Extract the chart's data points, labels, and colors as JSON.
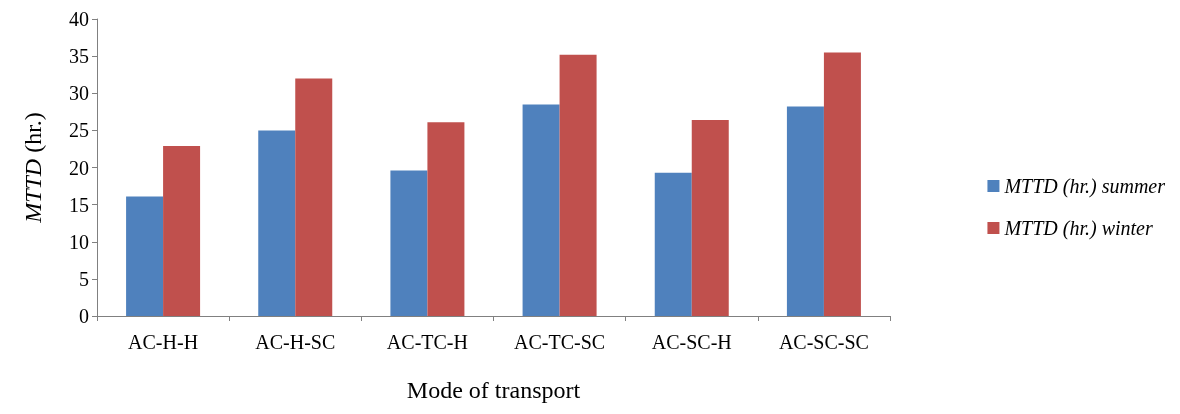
{
  "chart_data": {
    "type": "bar",
    "xlabel": "Mode of transport",
    "ylabel": "MTTD (hr.)",
    "categories": [
      "AC-H-H",
      "AC-H-SC",
      "AC-TC-H",
      "AC-TC-SC",
      "AC-SC-H",
      "AC-SC-SC"
    ],
    "series": [
      {
        "name": "MTTD (hr.) summer",
        "color": "#4f81bd",
        "values": [
          16.1,
          25,
          19.6,
          28.5,
          19.3,
          28.2
        ]
      },
      {
        "name": "MTTD (hr.) winter",
        "color": "#c0504d",
        "values": [
          22.9,
          32,
          26.1,
          35.2,
          26.4,
          35.5
        ]
      }
    ],
    "ylim": [
      0,
      40
    ],
    "yticks": [
      0,
      5,
      10,
      15,
      20,
      25,
      30,
      35,
      40
    ],
    "grid": false,
    "legend": "right"
  }
}
